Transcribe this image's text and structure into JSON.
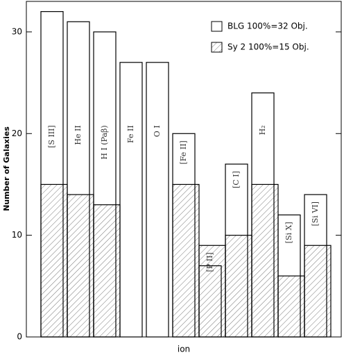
{
  "chart_data": {
    "type": "bar",
    "x_label": "ion",
    "y_label": "Number of Galaxies",
    "categories": [
      "[S III]",
      "He II",
      "H I (Paβ)",
      "Fe II",
      "O I",
      "[Fe II]",
      "[P II]",
      "[C I]",
      "H₂",
      "[Si X]",
      "[Si VI]"
    ],
    "series": [
      {
        "name": "BLG 100%=32 Obj.",
        "color": "#ffffff",
        "pattern": "solid",
        "values": [
          32,
          31,
          30,
          27,
          27,
          20,
          7,
          17,
          24,
          12,
          14
        ]
      },
      {
        "name": "Sy 2 100%=15 Obj.",
        "color": "#ffffff",
        "pattern": "hatch",
        "values": [
          15,
          14,
          13,
          0,
          0,
          15,
          9,
          10,
          15,
          6,
          9
        ]
      }
    ],
    "ylim": [
      0,
      33
    ],
    "yticks": [
      0,
      10,
      20,
      30
    ],
    "legend": "upper right"
  }
}
